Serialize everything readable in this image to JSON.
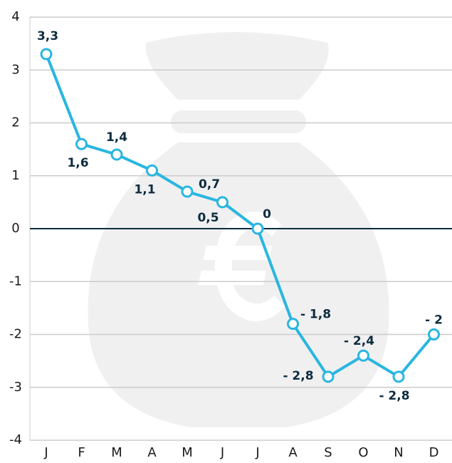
{
  "chart_data": {
    "type": "line",
    "categories": [
      "J",
      "F",
      "M",
      "A",
      "M",
      "J",
      "J",
      "A",
      "S",
      "O",
      "N",
      "D"
    ],
    "series": [
      {
        "color": "#29b6e0",
        "values": [
          3.3,
          1.6,
          1.4,
          1.1,
          0.7,
          0.5,
          0,
          -1.8,
          -2.8,
          -2.4,
          -2.8,
          -2
        ],
        "value_labels": [
          "3,3",
          "1,6",
          "1,4",
          "1,1",
          "0,7",
          "0,5",
          "0",
          "- 1,8",
          "- 2,8",
          "- 2,4",
          "- 2,8",
          "- 2"
        ]
      }
    ],
    "ylim": [
      -4,
      4
    ],
    "yticks": [
      -4,
      -3,
      -2,
      -1,
      0,
      1,
      2,
      3,
      4
    ],
    "grid": true
  }
}
